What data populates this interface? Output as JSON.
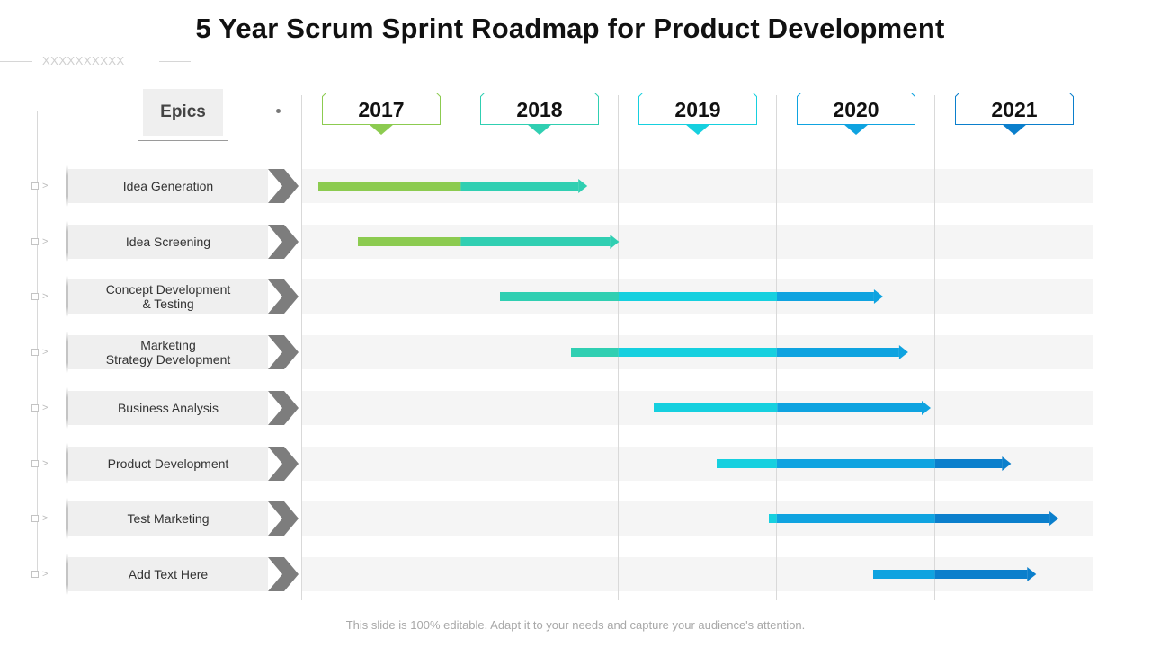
{
  "title": "5 Year Scrum Sprint Roadmap for Product Development",
  "decoration": {
    "x_marks": "XXXXXXXXXX"
  },
  "epics_header": "Epics",
  "row_marker": ">",
  "years": [
    "2017",
    "2018",
    "2019",
    "2020",
    "2021"
  ],
  "epics": [
    "Idea Generation",
    "Idea Screening",
    "Concept Development\n& Testing",
    "Marketing\nStrategy Development",
    "Business Analysis",
    "Product Development",
    "Test Marketing",
    "Add Text Here"
  ],
  "colors": {
    "year_2017": "#8ccb50",
    "year_2018": "#30cfb2",
    "year_2019": "#16d0df",
    "year_2020": "#0fa3e0",
    "year_2021": "#0b7fcc",
    "chevron": "#7d7d7d"
  },
  "chart_data": {
    "type": "gantt",
    "axis_start": 2017.0,
    "axis_end": 2022.0,
    "unit": "year",
    "tasks": [
      {
        "epic": "Idea Generation",
        "start": 2017.1,
        "end": 2018.8
      },
      {
        "epic": "Idea Screening",
        "start": 2017.35,
        "end": 2019.0
      },
      {
        "epic": "Concept Development & Testing",
        "start": 2018.25,
        "end": 2020.67
      },
      {
        "epic": "Marketing Strategy Development",
        "start": 2018.7,
        "end": 2020.83
      },
      {
        "epic": "Business Analysis",
        "start": 2019.22,
        "end": 2020.97
      },
      {
        "epic": "Product Development",
        "start": 2019.62,
        "end": 2021.48
      },
      {
        "epic": "Test Marketing",
        "start": 2019.95,
        "end": 2021.78
      },
      {
        "epic": "Add Text Here",
        "start": 2020.61,
        "end": 2021.64
      }
    ]
  },
  "footer": "This slide is 100% editable. Adapt it to your needs and capture your audience's attention."
}
